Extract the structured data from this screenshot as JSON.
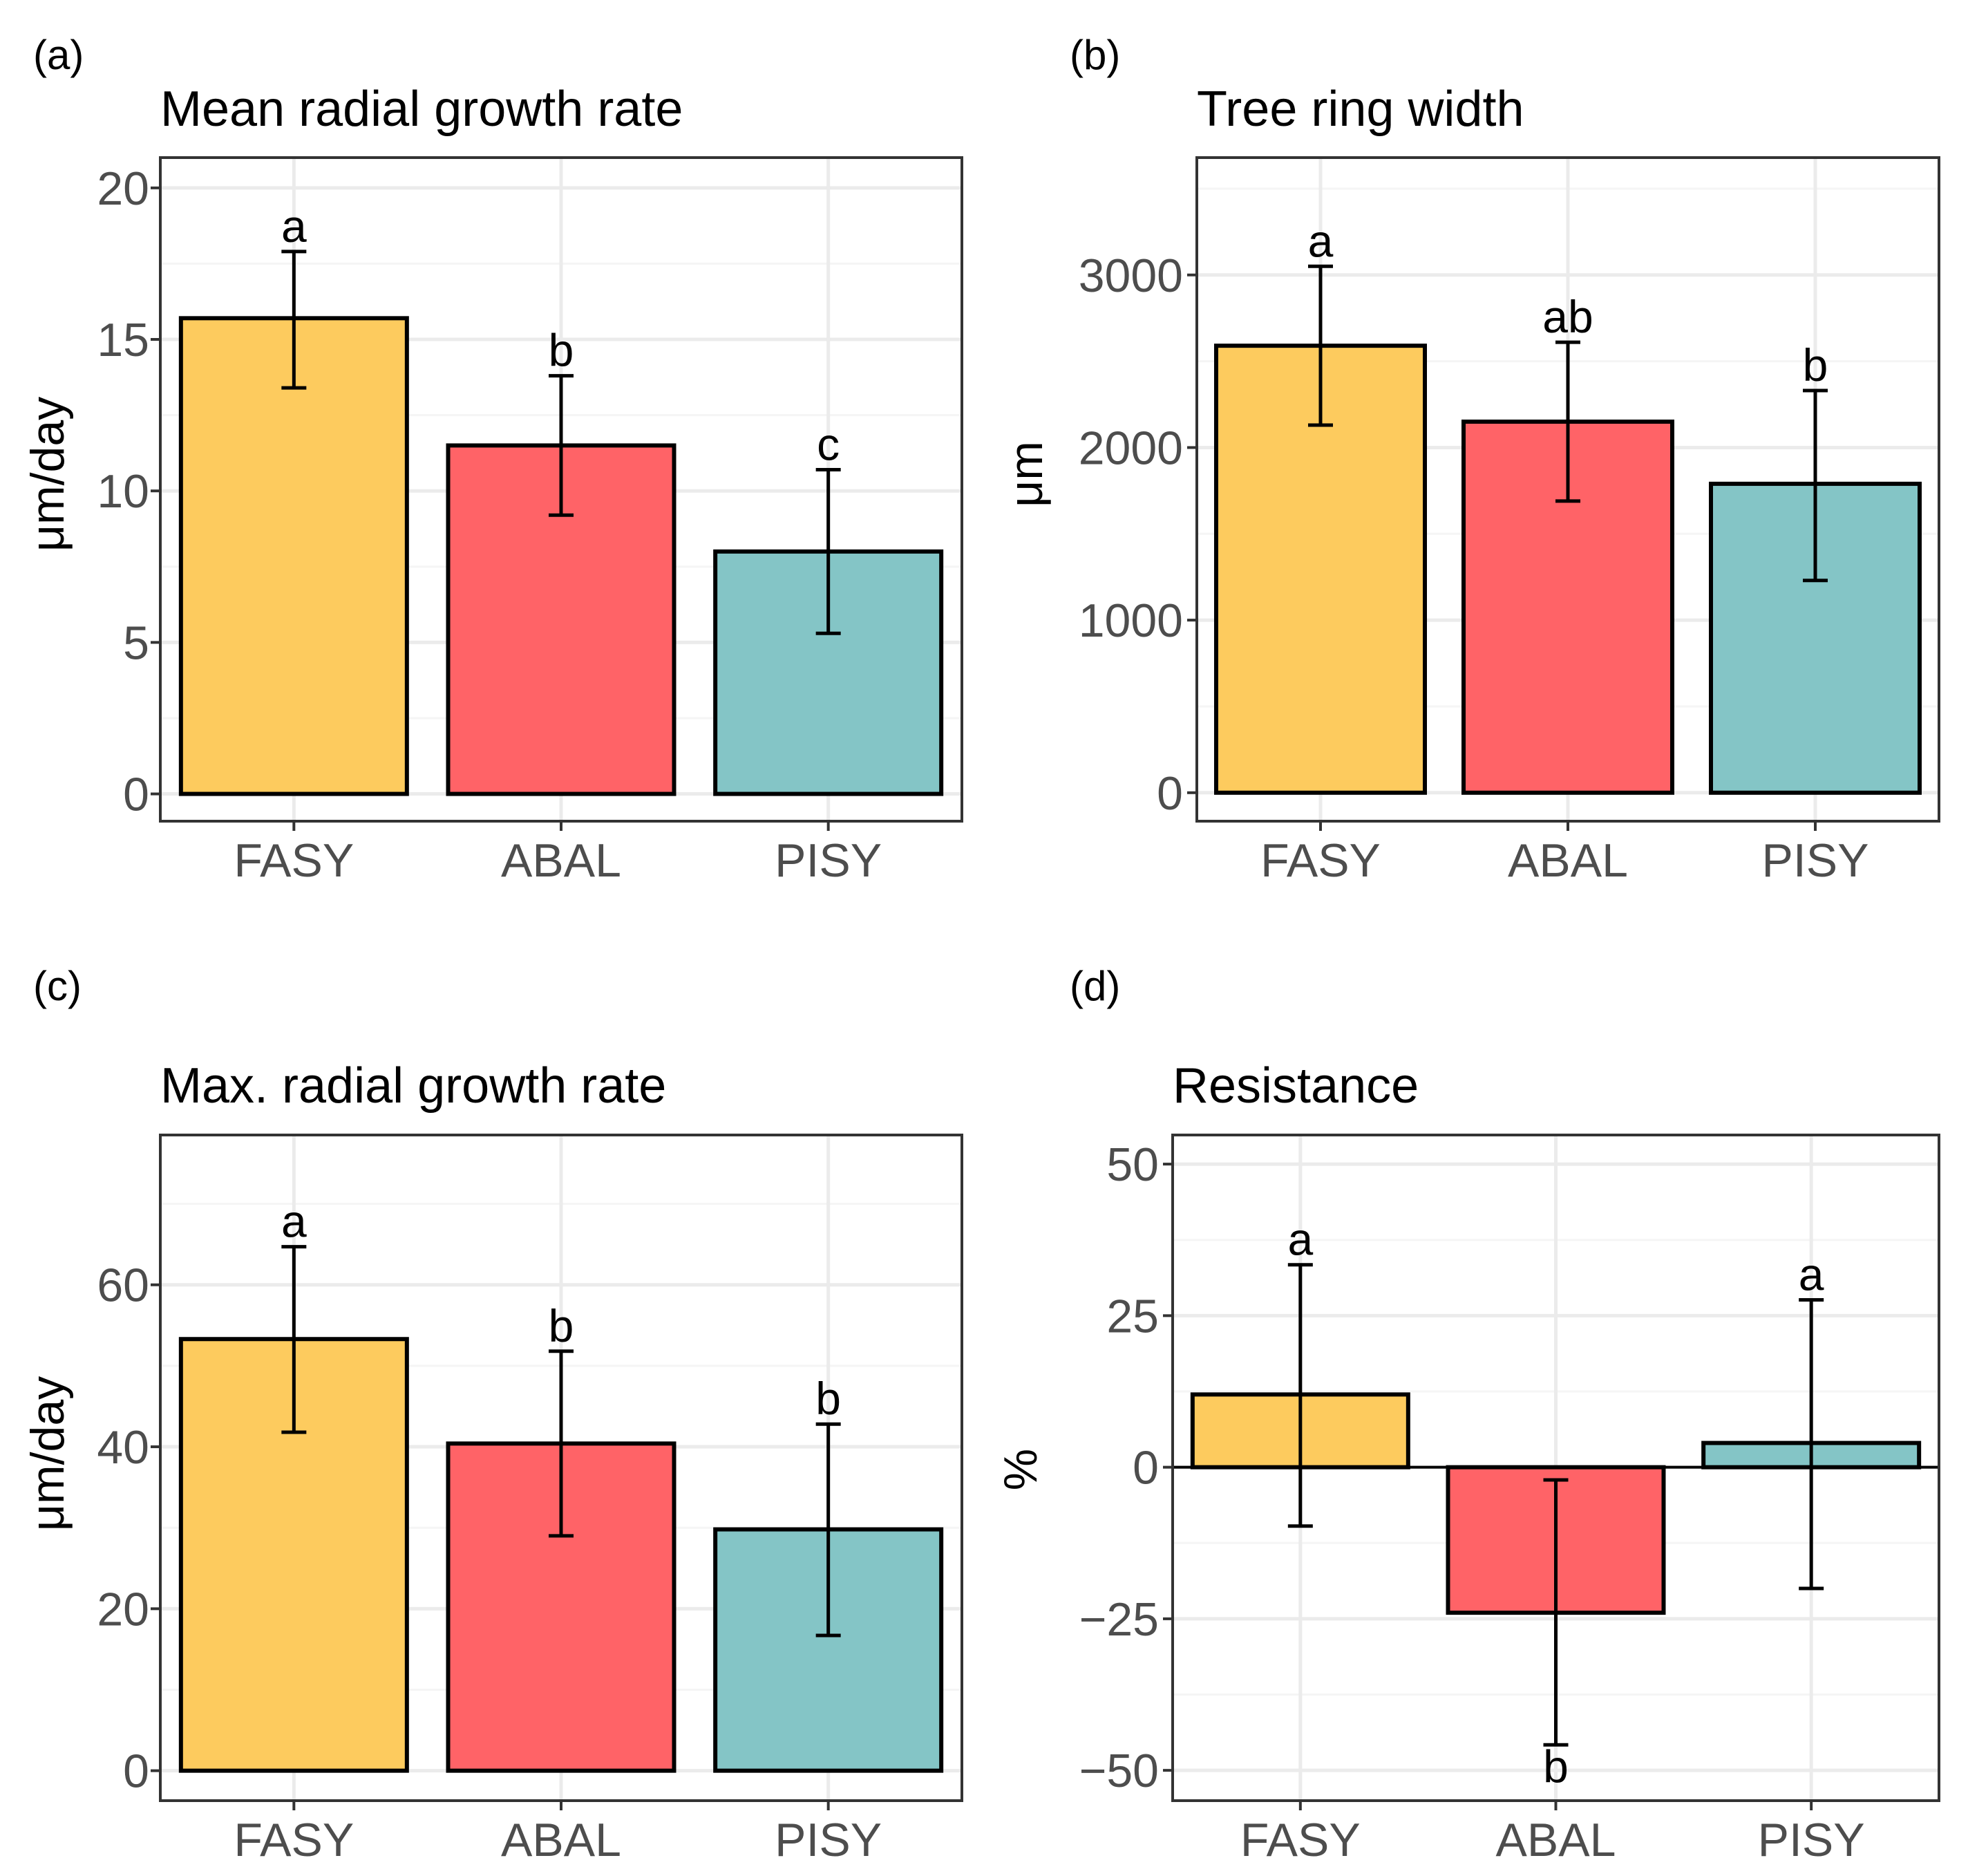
{
  "figure": {
    "panels": [
      {
        "tag": "(a)",
        "title": "Mean radial growth rate",
        "ylabel": "μm/day"
      },
      {
        "tag": "(b)",
        "title": "Tree ring width",
        "ylabel": "μm"
      },
      {
        "tag": "(c)",
        "title": "Max. radial growth rate",
        "ylabel": "μm/day"
      },
      {
        "tag": "(d)",
        "title": "Resistance",
        "ylabel": "%"
      }
    ]
  },
  "colors": {
    "FASY": "#FDCB5E",
    "ABAL": "#FF6367",
    "PISY": "#84C5C6",
    "grid_major": "#EBEBEB",
    "grid_minor": "#F5F5F5",
    "panel_border": "#333333"
  },
  "chart_data": [
    {
      "type": "bar",
      "tag": "(a)",
      "title": "Mean radial growth rate",
      "xlabel": "",
      "ylabel": "μm/day",
      "categories": [
        "FASY",
        "ABAL",
        "PISY"
      ],
      "values": [
        15.7,
        11.5,
        8.0
      ],
      "error_low": [
        13.4,
        9.2,
        5.3
      ],
      "error_high": [
        17.9,
        13.8,
        10.7
      ],
      "significance": [
        "a",
        "b",
        "c"
      ],
      "ylim": [
        -0.9,
        21.0
      ],
      "yticks": [
        0,
        5,
        10,
        15,
        20
      ],
      "ytick_labels": [
        "0",
        "5",
        "10",
        "15",
        "20"
      ],
      "grid": true
    },
    {
      "type": "bar",
      "tag": "(b)",
      "title": "Tree ring width",
      "xlabel": "",
      "ylabel": "μm",
      "categories": [
        "FASY",
        "ABAL",
        "PISY"
      ],
      "values": [
        2590,
        2150,
        1790
      ],
      "error_low": [
        2130,
        1690,
        1230
      ],
      "error_high": [
        3050,
        2610,
        2330
      ],
      "significance": [
        "a",
        "ab",
        "b"
      ],
      "ylim": [
        -165,
        3680
      ],
      "yticks": [
        0,
        1000,
        2000,
        3000
      ],
      "ytick_labels": [
        "0",
        "1000",
        "2000",
        "3000"
      ],
      "grid": true
    },
    {
      "type": "bar",
      "tag": "(c)",
      "title": "Max. radial growth rate",
      "xlabel": "",
      "ylabel": "μm/day",
      "categories": [
        "FASY",
        "ABAL",
        "PISY"
      ],
      "values": [
        53.3,
        40.4,
        29.8
      ],
      "error_low": [
        41.8,
        29.0,
        16.7
      ],
      "error_high": [
        64.7,
        51.8,
        42.8
      ],
      "significance": [
        "a",
        "b",
        "b"
      ],
      "ylim": [
        -3.7,
        78.5
      ],
      "yticks": [
        0,
        20,
        40,
        60
      ],
      "ytick_labels": [
        "0",
        "20",
        "40",
        "60"
      ],
      "grid": true
    },
    {
      "type": "bar",
      "tag": "(d)",
      "title": "Resistance",
      "xlabel": "",
      "ylabel": "%",
      "categories": [
        "FASY",
        "ABAL",
        "PISY"
      ],
      "values": [
        12.0,
        -24.0,
        4.0
      ],
      "error_low": [
        -9.7,
        -45.8,
        -20.0
      ],
      "error_high": [
        33.4,
        -2.1,
        27.6
      ],
      "significance": [
        "a",
        "b",
        "a"
      ],
      "significance_position": [
        "above",
        "below",
        "above"
      ],
      "ylim": [
        -55.0,
        54.8
      ],
      "yticks": [
        -50,
        -25,
        0,
        25,
        50
      ],
      "ytick_labels": [
        "−50",
        "−25",
        "0",
        "25",
        "50"
      ],
      "zero_line": true,
      "grid": true
    }
  ]
}
